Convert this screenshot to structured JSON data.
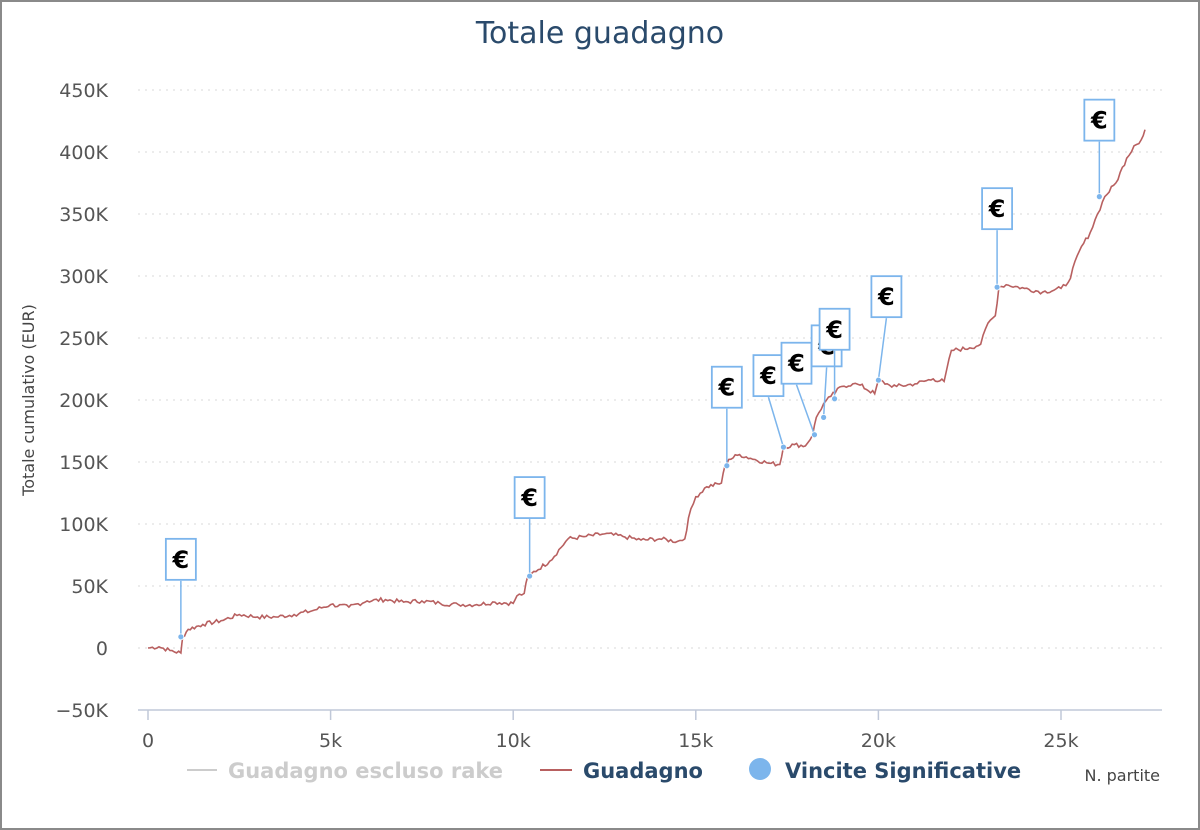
{
  "chart_data": {
    "type": "line",
    "title": "Totale guadagno",
    "xlabel": "N. partite",
    "ylabel": "Totale cumulativo (EUR)",
    "xlim": [
      -500,
      27500
    ],
    "ylim": [
      -50000,
      450000
    ],
    "x_ticks": [
      0,
      5000,
      10000,
      15000,
      20000,
      25000
    ],
    "x_tick_labels": [
      "0",
      "5k",
      "10k",
      "15k",
      "20k",
      "25k"
    ],
    "y_ticks": [
      -50000,
      0,
      50000,
      100000,
      150000,
      200000,
      250000,
      300000,
      350000,
      400000,
      450000
    ],
    "y_tick_labels": [
      "−50K",
      "0",
      "50K",
      "100K",
      "150K",
      "200K",
      "250K",
      "300K",
      "350K",
      "400K",
      "450K"
    ],
    "grid": "horizontal dotted",
    "legend_position": "bottom",
    "series": [
      {
        "name": "Guadagno escluso rake",
        "color": "#cccccc",
        "hidden": true,
        "x": [],
        "y": []
      },
      {
        "name": "Guadagno",
        "color": "#b86060",
        "x": [
          0,
          300,
          600,
          900,
          950,
          1100,
          1500,
          2000,
          2500,
          3000,
          3500,
          4000,
          4500,
          5000,
          5500,
          6000,
          6500,
          7000,
          7500,
          8000,
          8500,
          9000,
          9500,
          10000,
          10100,
          10300,
          10400,
          10500,
          11000,
          11500,
          12000,
          12500,
          13000,
          13500,
          14000,
          14500,
          14700,
          14800,
          15000,
          15300,
          15700,
          15800,
          15900,
          16200,
          16500,
          17000,
          17300,
          17400,
          17700,
          18000,
          18200,
          18300,
          18500,
          18700,
          19000,
          19300,
          19500,
          19900,
          20000,
          20300,
          20500,
          21000,
          21500,
          21800,
          22000,
          22500,
          22800,
          23000,
          23200,
          23300,
          23500,
          24000,
          24500,
          25000,
          25200,
          25500,
          25800,
          26000,
          26200,
          26500,
          26800,
          27000,
          27200,
          27300
        ],
        "y": [
          0,
          1000,
          -2000,
          -4000,
          9000,
          15000,
          19000,
          22000,
          27000,
          25000,
          25000,
          27000,
          30000,
          35000,
          33000,
          38000,
          39000,
          37000,
          38000,
          36000,
          35000,
          35000,
          37000,
          36000,
          42000,
          44000,
          58000,
          60000,
          70000,
          88000,
          90000,
          92000,
          90000,
          87000,
          88000,
          86000,
          88000,
          105000,
          122000,
          130000,
          133000,
          147000,
          152000,
          156000,
          153000,
          149000,
          148000,
          162000,
          164000,
          163000,
          172000,
          186000,
          197000,
          203000,
          211000,
          213000,
          212000,
          205000,
          216000,
          212000,
          211000,
          213000,
          217000,
          215000,
          240000,
          242000,
          245000,
          262000,
          268000,
          291000,
          293000,
          290000,
          287000,
          290000,
          295000,
          320000,
          335000,
          350000,
          364000,
          375000,
          395000,
          405000,
          410000,
          418000
        ]
      }
    ],
    "markers": {
      "name": "Vincite Significative",
      "color": "#7cb5ec",
      "symbol": "€",
      "points": [
        {
          "x": 900,
          "y": 9000
        },
        {
          "x": 10450,
          "y": 58000
        },
        {
          "x": 15850,
          "y": 147000
        },
        {
          "x": 17400,
          "y": 162000
        },
        {
          "x": 18250,
          "y": 172000
        },
        {
          "x": 18500,
          "y": 186000
        },
        {
          "x": 18800,
          "y": 201000
        },
        {
          "x": 20000,
          "y": 216000
        },
        {
          "x": 23250,
          "y": 291000
        },
        {
          "x": 26050,
          "y": 364000
        }
      ]
    }
  }
}
